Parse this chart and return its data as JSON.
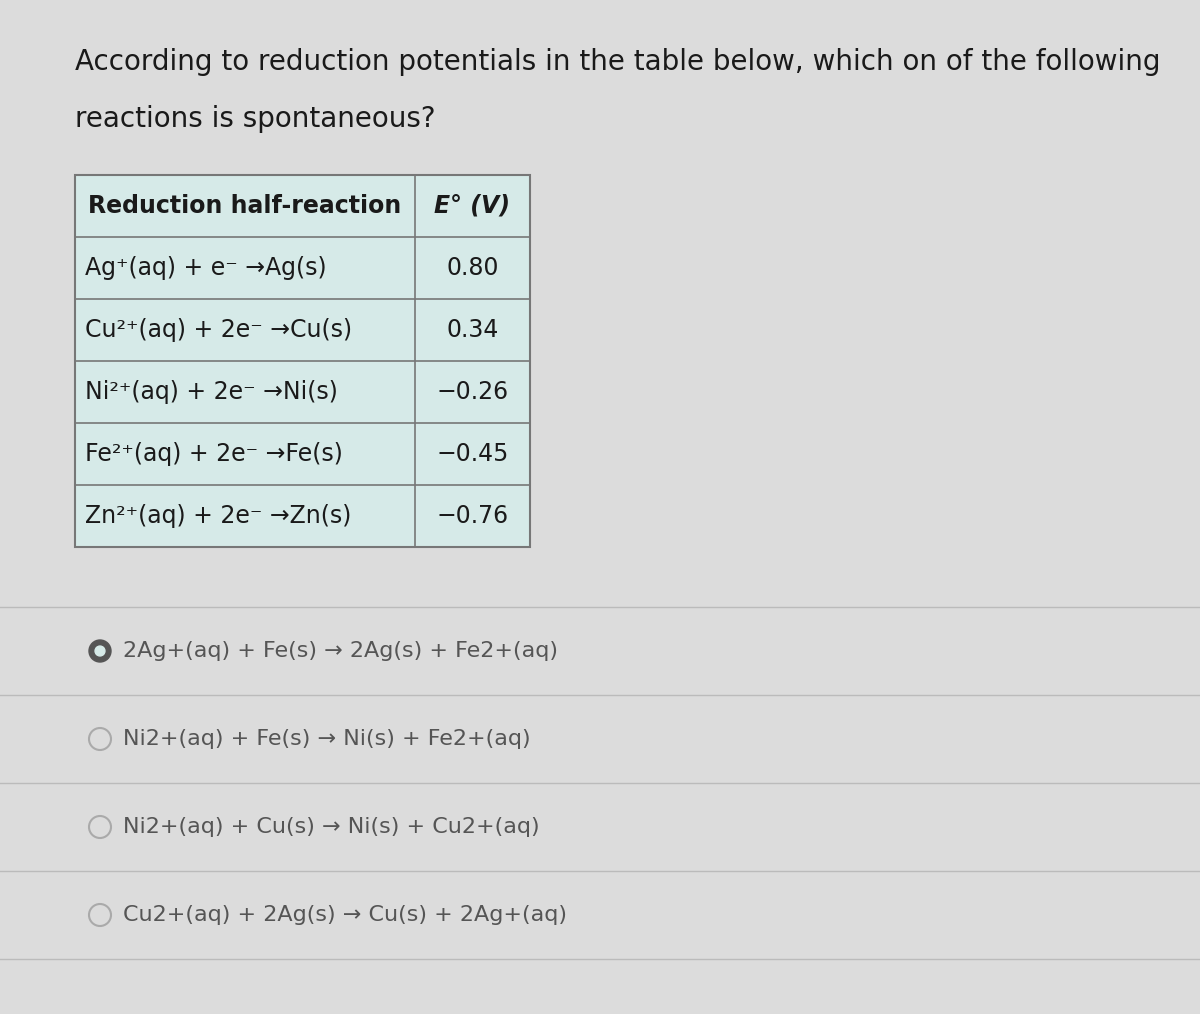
{
  "title_line1": "According to reduction potentials in the table below, which on of the following",
  "title_line2": "reactions is spontaneous?",
  "bg_color": "#dcdcdc",
  "table_bg": "#d6eae8",
  "table_border_color": "#777777",
  "table_col1_header": "Reduction half-reaction",
  "table_col2_header": "E° (V)",
  "table_rows": [
    [
      "Ag⁺(aq) + e⁻ →Ag(s)",
      "0.80"
    ],
    [
      "Cu²⁺(aq) + 2e⁻ →Cu(s)",
      "0.34"
    ],
    [
      "Ni²⁺(aq) + 2e⁻ →Ni(s)",
      "−0.26"
    ],
    [
      "Fe²⁺(aq) + 2e⁻ →Fe(s)",
      "−0.45"
    ],
    [
      "Zn²⁺(aq) + 2e⁻ →Zn(s)",
      "−0.76"
    ]
  ],
  "answer_choices": [
    {
      "text": "2Ag+(aq) + Fe(s) → 2Ag(s) + Fe2+(aq)",
      "selected": true
    },
    {
      "text": "Ni2+(aq) + Fe(s) → Ni(s) + Fe2+(aq)",
      "selected": false
    },
    {
      "text": "Ni2+(aq) + Cu(s) → Ni(s) + Cu2+(aq)",
      "selected": false
    },
    {
      "text": "Cu2+(aq) + 2Ag(s) → Cu(s) + 2Ag+(aq)",
      "selected": false
    }
  ],
  "text_color": "#1a1a1a",
  "answer_text_color": "#555555",
  "selected_circle_fill": "#555555",
  "selected_circle_inner": "#d6eae8",
  "unselected_circle_color": "#aaaaaa",
  "divider_color": "#bbbbbb",
  "title_fontsize": 20,
  "table_header_fontsize": 17,
  "table_body_fontsize": 17,
  "answer_fontsize": 16
}
